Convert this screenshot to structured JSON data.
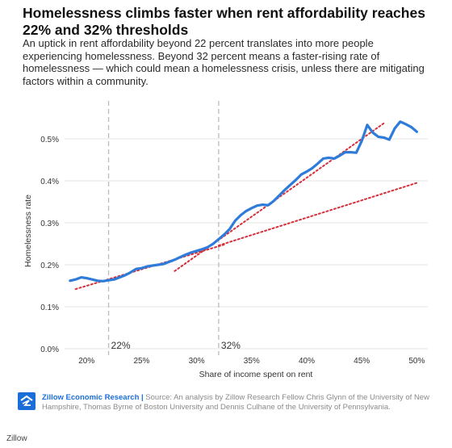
{
  "title": "Homelessness climbs faster when rent affordability reaches 22% and 32% thresholds",
  "subtitle": "An uptick in rent affordability beyond 22 percent translates into more people experiencing homelessness. Beyond 32 percent means a faster-rising rate of homelessness — which could mean a homelessness crisis, unless there are mitigating factors within a community.",
  "footer": {
    "brand": "Zillow Economic Research |",
    "source": " Source: An analysis by Zillow Research Fellow Chris Glynn of the University of New Hampshire, Thomas Byrne of Boston University and Dennis Culhane of the University of Pennsylvania.",
    "logo_icon": "zillow-logo-icon"
  },
  "page_credit": "Zillow",
  "colors": {
    "series": "#2f7bd9",
    "trend": "#d62f3a",
    "threshold": "#bbbbbb",
    "grid": "#e4e4e4",
    "logo_bg": "#1b6ed8"
  },
  "chart_data": {
    "type": "line",
    "xlabel": "Share of income spent on rent",
    "ylabel": "Homelessness rate",
    "xlim": [
      0.18,
      0.51
    ],
    "ylim": [
      0.0,
      0.006
    ],
    "x_ticks": [
      0.2,
      0.25,
      0.3,
      0.35,
      0.4,
      0.45,
      0.5
    ],
    "x_tick_labels": [
      "20%",
      "25%",
      "30%",
      "35%",
      "40%",
      "45%",
      "50%"
    ],
    "y_ticks": [
      0.0,
      0.001,
      0.002,
      0.003,
      0.004,
      0.005
    ],
    "y_tick_labels": [
      "0.0%",
      "0.1%",
      "0.2%",
      "0.3%",
      "0.4%",
      "0.5%"
    ],
    "grid": "horizontal",
    "series": [
      {
        "x": [
          0.185,
          0.19,
          0.195,
          0.2,
          0.205,
          0.21,
          0.215,
          0.22,
          0.225,
          0.23,
          0.235,
          0.24,
          0.245,
          0.25,
          0.255,
          0.26,
          0.265,
          0.27,
          0.275,
          0.28,
          0.285,
          0.29,
          0.295,
          0.3,
          0.305,
          0.31,
          0.315,
          0.32,
          0.325,
          0.33,
          0.335,
          0.34,
          0.345,
          0.35,
          0.355,
          0.36,
          0.365,
          0.37,
          0.375,
          0.38,
          0.385,
          0.39,
          0.395,
          0.4,
          0.405,
          0.41,
          0.415,
          0.42,
          0.425,
          0.43,
          0.435,
          0.44,
          0.445,
          0.45,
          0.455,
          0.46,
          0.465,
          0.47,
          0.475,
          0.48,
          0.485,
          0.49,
          0.495,
          0.5
        ],
        "values": [
          0.00162,
          0.00165,
          0.0017,
          0.00168,
          0.00165,
          0.00162,
          0.00161,
          0.00163,
          0.00165,
          0.0017,
          0.00175,
          0.00182,
          0.0019,
          0.00192,
          0.00196,
          0.00198,
          0.002,
          0.00202,
          0.00207,
          0.00212,
          0.00218,
          0.00224,
          0.00229,
          0.00233,
          0.00237,
          0.00242,
          0.0025,
          0.00261,
          0.00272,
          0.00285,
          0.00305,
          0.00318,
          0.00328,
          0.00335,
          0.00341,
          0.00343,
          0.00342,
          0.00352,
          0.00365,
          0.00378,
          0.0039,
          0.00402,
          0.00415,
          0.00422,
          0.0043,
          0.00441,
          0.00453,
          0.00455,
          0.00453,
          0.0046,
          0.00468,
          0.00468,
          0.00467,
          0.00495,
          0.00533,
          0.00515,
          0.00505,
          0.00503,
          0.00498,
          0.00525,
          0.00541,
          0.00535,
          0.00528,
          0.00517
        ]
      }
    ],
    "trendlines": [
      {
        "x": [
          0.19,
          0.325
        ],
        "values": [
          0.00142,
          0.00248
        ]
      },
      {
        "x": [
          0.32,
          0.5
        ],
        "values": [
          0.00246,
          0.00395
        ]
      },
      {
        "x": [
          0.28,
          0.47
        ],
        "values": [
          0.00185,
          0.00537
        ]
      }
    ],
    "thresholds": [
      {
        "x": 0.22,
        "label": "22%"
      },
      {
        "x": 0.32,
        "label": "32%"
      }
    ]
  }
}
